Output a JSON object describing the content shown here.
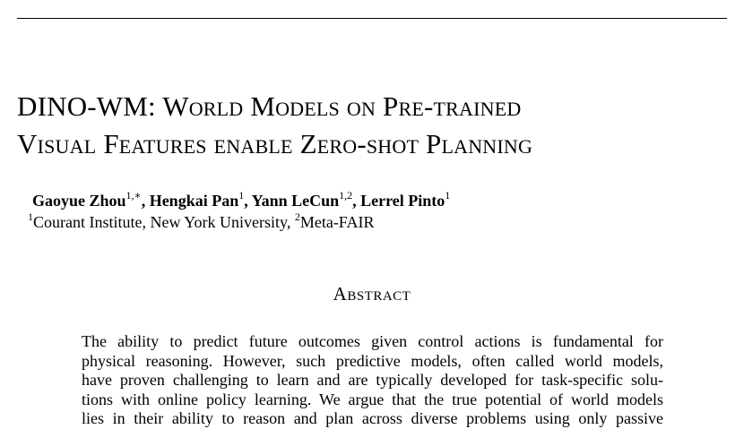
{
  "paper": {
    "title_lines": [
      "DINO-WM: World Models on Pre-trained",
      "Visual Features enable Zero-shot Planning"
    ],
    "authors": [
      {
        "name": "Gaoyue Zhou",
        "sup": "1,∗"
      },
      {
        "name": "Hengkai Pan",
        "sup": "1"
      },
      {
        "name": "Yann LeCun",
        "sup": "1,2"
      },
      {
        "name": "Lerrel Pinto",
        "sup": "1"
      }
    ],
    "affiliations": [
      {
        "sup": "1",
        "text": "Courant Institute, New York University,"
      },
      {
        "sup": "2",
        "text": "Meta-FAIR"
      }
    ],
    "abstract_heading": "Abstract",
    "abstract_lines": [
      "The ability to predict future outcomes given control actions is fundamental for",
      "physical reasoning. However, such predictive models, often called world models,",
      "have proven challenging to learn and are typically developed for task-specific solu-",
      "tions with online policy learning. We argue that the true potential of world models",
      "lies in their ability to reason and plan across diverse problems using only passive"
    ]
  }
}
